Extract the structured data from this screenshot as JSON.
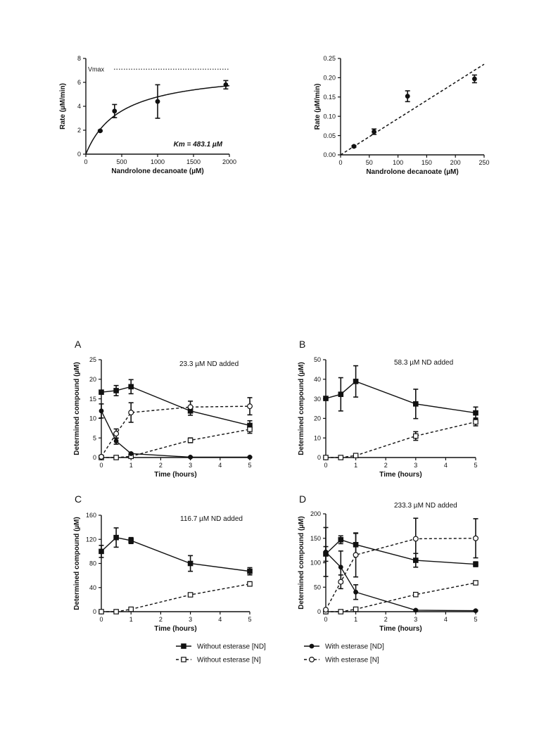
{
  "chart_data": [
    {
      "id": "mm",
      "type": "scatter",
      "xlabel": "Nandrolone decanoate (µM)",
      "ylabel": "Rate (µM/min)",
      "xlim": [
        0,
        2000
      ],
      "ylim": [
        0,
        8
      ],
      "xticks": [
        0,
        500,
        1000,
        1500,
        2000
      ],
      "yticks": [
        0,
        2,
        4,
        6,
        8
      ],
      "grid": false,
      "series": [
        {
          "marker": "filled-circle",
          "x": [
            200,
            400,
            1000,
            1950
          ],
          "y": [
            1.95,
            3.6,
            4.4,
            5.8
          ],
          "err": [
            0.05,
            0.55,
            1.4,
            0.35
          ]
        }
      ],
      "fit": {
        "type": "michaelis-menten",
        "vmax": 7.1,
        "km": 483.1,
        "style": "solid"
      },
      "reference_line": {
        "y": 7.1,
        "label": "Vmax",
        "style": "dotted"
      },
      "annotation": "Km = 483.1 µM"
    },
    {
      "id": "lin",
      "type": "scatter",
      "xlabel": "Nandrolone decanoate (µM)",
      "ylabel": "Rate (µM/min)",
      "xlim": [
        0,
        250
      ],
      "ylim": [
        0,
        0.25
      ],
      "xticks": [
        0,
        50,
        100,
        150,
        200,
        250
      ],
      "yticks": [
        "0.00",
        "0.05",
        "0.10",
        "0.15",
        "0.20",
        "0.25"
      ],
      "grid": false,
      "series": [
        {
          "marker": "filled-circle",
          "x": [
            23.3,
            58.3,
            116.7,
            233.3
          ],
          "y": [
            0.022,
            0.06,
            0.152,
            0.197
          ],
          "err": [
            0.002,
            0.007,
            0.014,
            0.01
          ]
        }
      ],
      "fit": {
        "type": "linear",
        "x": [
          0,
          250
        ],
        "y": [
          0,
          0.235
        ],
        "style": "dashed"
      }
    },
    {
      "id": "A",
      "type": "line",
      "panel": "A",
      "annotation": "23.3 µM ND added",
      "xlabel": "Time (hours)",
      "ylabel": "Determined compound  (µM)",
      "xlim": [
        0,
        5
      ],
      "ylim": [
        0,
        25
      ],
      "xticks": [
        0,
        1,
        2,
        3,
        4,
        5
      ],
      "yticks": [
        0,
        5,
        10,
        15,
        20,
        25
      ],
      "grid": false,
      "x": [
        0,
        0.5,
        1,
        3,
        5
      ],
      "series": [
        {
          "name": "Without esterase [ND]",
          "marker": "filled-square",
          "style": "solid",
          "values": [
            16.7,
            17.1,
            18.1,
            11.9,
            8.2
          ],
          "err": [
            0.5,
            1.3,
            1.8,
            1.1,
            1.2
          ]
        },
        {
          "name": "Without esterase [N]",
          "marker": "open-square",
          "style": "dashed",
          "values": [
            0,
            0,
            0.3,
            4.4,
            7.2
          ],
          "err": [
            0.1,
            0.1,
            0.2,
            0.6,
            1.0
          ]
        },
        {
          "name": "With esterase [ND]",
          "marker": "filled-circle",
          "style": "solid",
          "values": [
            11.9,
            4.2,
            1.0,
            0.1,
            0.1
          ],
          "err": [
            1.8,
            0.8,
            0.2,
            0.1,
            0.1
          ]
        },
        {
          "name": "With esterase [N]",
          "marker": "open-circle",
          "style": "dashed",
          "values": [
            0.2,
            6.1,
            11.5,
            12.9,
            13.1
          ],
          "err": [
            0.1,
            1.2,
            2.5,
            1.5,
            2.2
          ]
        }
      ]
    },
    {
      "id": "B",
      "type": "line",
      "panel": "B",
      "annotation": "58.3 µM  ND added",
      "xlabel": "Time (hours)",
      "ylabel": "Determined compound  (µM)",
      "xlim": [
        0,
        5
      ],
      "ylim": [
        0,
        50
      ],
      "xticks": [
        0,
        1,
        2,
        3,
        4,
        5
      ],
      "yticks": [
        0,
        10,
        20,
        30,
        40,
        50
      ],
      "grid": false,
      "x": [
        0,
        0.5,
        1,
        3,
        5
      ],
      "series": [
        {
          "name": "Without esterase [ND]",
          "marker": "filled-square",
          "style": "solid",
          "values": [
            30.2,
            32.3,
            38.9,
            27.4,
            22.8
          ],
          "err": [
            1.0,
            8.5,
            8.0,
            7.5,
            3.0
          ]
        },
        {
          "name": "Without esterase [N]",
          "marker": "open-square",
          "style": "dashed",
          "values": [
            0,
            0,
            1.0,
            11.0,
            18.2
          ],
          "err": [
            0.2,
            0.2,
            0.4,
            2.2,
            2.0
          ]
        }
      ]
    },
    {
      "id": "C",
      "type": "line",
      "panel": "C",
      "annotation": "116.7 µM ND added",
      "xlabel": "Time (hours)",
      "ylabel": "Determined compound  (µM)",
      "xlim": [
        0,
        5
      ],
      "ylim": [
        0,
        160
      ],
      "xticks": [
        0,
        1,
        2,
        3,
        4,
        5
      ],
      "yticks": [
        0,
        40,
        80,
        120,
        160
      ],
      "grid": false,
      "x": [
        0,
        0.5,
        1,
        3,
        5
      ],
      "series": [
        {
          "name": "Without esterase [ND]",
          "marker": "filled-square",
          "style": "solid",
          "values": [
            100,
            123,
            118,
            80,
            67
          ],
          "err": [
            10,
            16,
            5,
            13,
            6
          ]
        },
        {
          "name": "Without esterase [N]",
          "marker": "open-square",
          "style": "dashed",
          "values": [
            0,
            0,
            4,
            28,
            46
          ],
          "err": [
            0.5,
            0.5,
            1.0,
            3.0,
            3.5
          ]
        }
      ]
    },
    {
      "id": "D",
      "type": "line",
      "panel": "D",
      "annotation": "233.3 µM ND added",
      "xlabel": "Time (hours)",
      "ylabel": "Determined compound  (µM)",
      "xlim": [
        0,
        5
      ],
      "ylim": [
        0,
        200
      ],
      "xticks": [
        0,
        1,
        2,
        3,
        4,
        5
      ],
      "yticks": [
        0,
        50,
        100,
        150,
        200
      ],
      "grid": false,
      "x": [
        0,
        0.5,
        1,
        3,
        5
      ],
      "series": [
        {
          "name": "Without esterase [ND]",
          "marker": "filled-square",
          "style": "solid",
          "values": [
            118,
            147,
            137,
            105,
            97
          ],
          "err": [
            15,
            8,
            23,
            14,
            5
          ]
        },
        {
          "name": "Without esterase [N]",
          "marker": "open-square",
          "style": "dashed",
          "values": [
            0,
            0,
            5,
            35,
            59
          ],
          "err": [
            0.5,
            0.5,
            1.0,
            3.0,
            3.0
          ]
        },
        {
          "name": "With esterase [ND]",
          "marker": "filled-circle",
          "style": "solid",
          "values": [
            122,
            91,
            40,
            3,
            2
          ],
          "err": [
            50,
            33,
            15,
            1,
            1
          ]
        },
        {
          "name": "With esterase [N]",
          "marker": "open-circle",
          "style": "dashed",
          "values": [
            4,
            61,
            116,
            149,
            150
          ],
          "err": [
            1,
            14,
            45,
            42,
            40
          ]
        }
      ]
    }
  ],
  "legend": {
    "placement": "bottom-center",
    "entries": [
      {
        "label": "Without esterase [ND]",
        "marker": "filled-square",
        "style": "solid"
      },
      {
        "label": "With esterase [ND]",
        "marker": "filled-circle",
        "style": "solid"
      },
      {
        "label": "Without esterase [N]",
        "marker": "open-square",
        "style": "dashed"
      },
      {
        "label": "With esterase [N]",
        "marker": "open-circle",
        "style": "dashed"
      }
    ]
  }
}
